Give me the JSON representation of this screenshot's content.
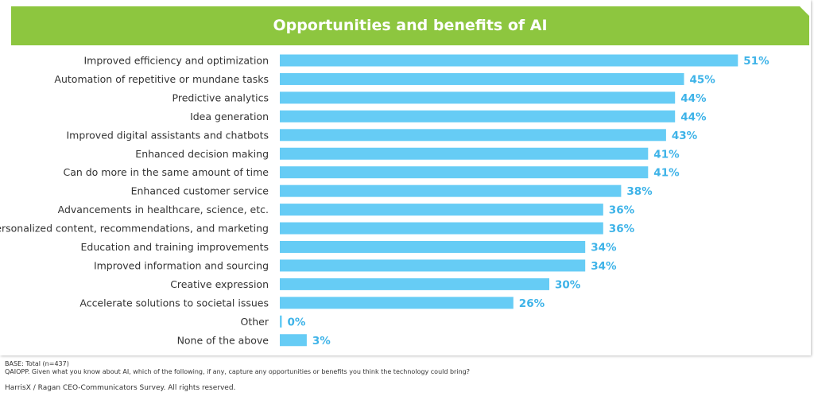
{
  "title": "Opportunities and benefits of AI",
  "colors": {
    "banner": "#8DC63F",
    "bar": "#66CCF5",
    "value_label": "#3EB3E8",
    "category_label": "#333333"
  },
  "chart_data": {
    "type": "bar",
    "orientation": "horizontal",
    "title": "Opportunities and benefits of AI",
    "categories": [
      "Improved efficiency and optimization",
      "Automation of repetitive or mundane tasks",
      "Predictive analytics",
      "Idea generation",
      "Improved digital assistants and chatbots",
      "Enhanced decision making",
      "Can do more in the same amount of time",
      "Enhanced customer service",
      "Advancements in healthcare, science, etc.",
      "Personalized content, recommendations, and marketing",
      "Education and training improvements",
      "Improved information and sourcing",
      "Creative expression",
      "Accelerate solutions to societal issues",
      "Other",
      "None of the above"
    ],
    "values": [
      51,
      45,
      44,
      44,
      43,
      41,
      41,
      38,
      36,
      36,
      34,
      34,
      30,
      26,
      0,
      3
    ],
    "value_labels": [
      "51%",
      "45%",
      "44%",
      "44%",
      "43%",
      "41%",
      "41%",
      "38%",
      "36%",
      "36%",
      "34%",
      "34%",
      "30%",
      "26%",
      "0%",
      "3%"
    ],
    "grid": false,
    "legend": "none"
  },
  "footer": {
    "base": "BASE: Total (n=437)",
    "question": "QAIOPP. Given what you know about AI, which of the following, if any, capture any opportunities or benefits you think the technology could bring?",
    "copyright": "HarrisX / Ragan CEO-Communicators Survey. All rights reserved."
  }
}
